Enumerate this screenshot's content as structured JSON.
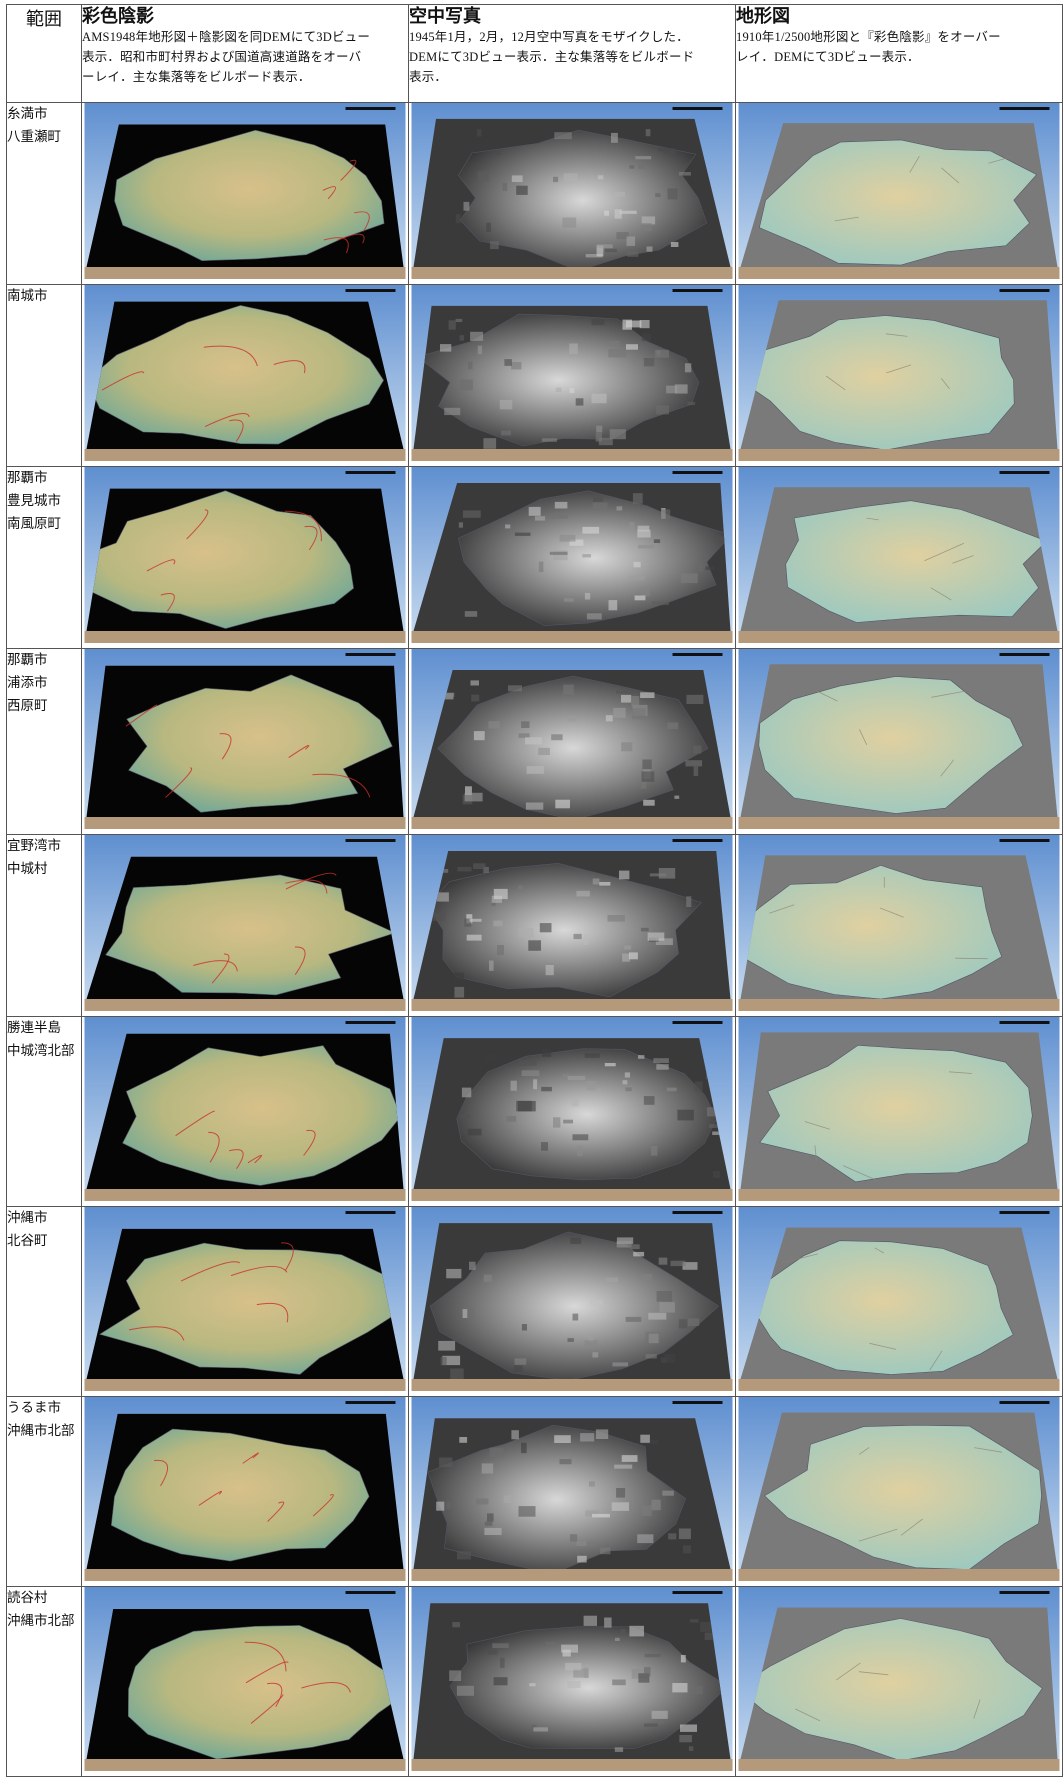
{
  "header": {
    "range_label": "範囲",
    "columns": [
      {
        "title": "彩色陰影",
        "desc": [
          "AMS1948年地形図＋陰影図を同DEMにて3Dビュー",
          "表示．昭和市町村界および国道高速道路をオーバ",
          "ーレイ．主な集落等をビルボード表示．"
        ]
      },
      {
        "title": "空中写真",
        "desc": [
          "1945年1月，2月，12月空中写真をモザイクした．",
          "DEMにて3Dビュー表示．主な集落等をビルボード",
          "表示．"
        ]
      },
      {
        "title": "地形図",
        "desc": [
          "1910年1/2500地形図と『彩色陰影』をオーバー",
          "レイ．DEMにて3Dビュー表示．"
        ]
      }
    ]
  },
  "rows": [
    {
      "area": [
        "糸満市",
        "八重瀬町"
      ]
    },
    {
      "area": [
        "南城市"
      ]
    },
    {
      "area": [
        "那覇市",
        "豊見城市",
        "南風原町"
      ]
    },
    {
      "area": [
        "那覇市",
        "浦添市",
        "西原町"
      ]
    },
    {
      "area": [
        "宜野湾市",
        "中城村"
      ]
    },
    {
      "area": [
        "勝連半島",
        "中城湾北部"
      ]
    },
    {
      "area": [
        "沖縄市",
        "北谷町"
      ]
    },
    {
      "area": [
        "うるま市",
        "沖縄市北部"
      ]
    },
    {
      "area": [
        "読谷村",
        "沖縄市北部"
      ]
    }
  ],
  "colors": {
    "sky_top": "#5f8fd0",
    "sky_bottom": "#c9dcf0",
    "sea_shaded": "#050505",
    "land_low": "#6fa898",
    "land_high": "#d8c08a",
    "road_red": "#c8302a",
    "photo_dark": "#2a2a2a",
    "photo_light": "#d8d8d8",
    "topo_sea": "#7a7a7a",
    "topo_land_low": "#9cc9c0",
    "topo_land_high": "#e0d0a0",
    "base_brown": "#b49a7a"
  }
}
